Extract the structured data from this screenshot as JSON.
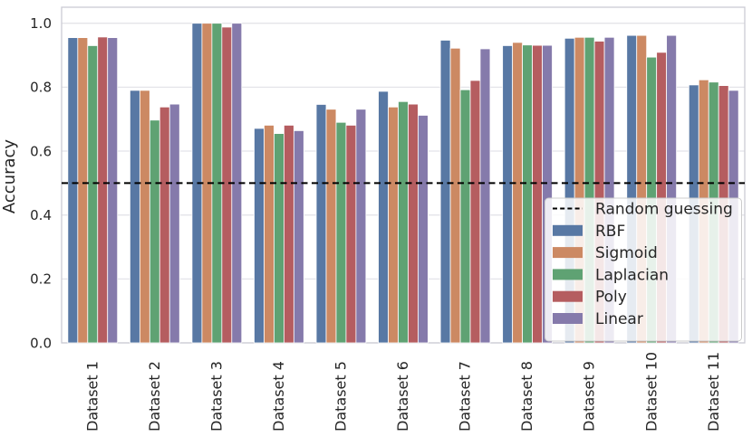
{
  "chart_data": {
    "type": "bar",
    "title": "",
    "xlabel": "",
    "ylabel": "Accuracy",
    "ylim": [
      0.0,
      1.0
    ],
    "yticks": [
      "0.0",
      "0.2",
      "0.4",
      "0.6",
      "0.8",
      "1.0"
    ],
    "grid": true,
    "legend_position": "lower right",
    "categories": [
      "Dataset 1",
      "Dataset 2",
      "Dataset 3",
      "Dataset 4",
      "Dataset 5",
      "Dataset 6",
      "Dataset 7",
      "Dataset 8",
      "Dataset 9",
      "Dataset 10",
      "Dataset 11"
    ],
    "series": [
      {
        "name": "RBF",
        "color": "#5878A4",
        "values": [
          0.955,
          0.79,
          1.0,
          0.671,
          0.746,
          0.787,
          0.947,
          0.93,
          0.953,
          0.962,
          0.807
        ]
      },
      {
        "name": "Sigmoid",
        "color": "#CC8963",
        "values": [
          0.955,
          0.79,
          1.0,
          0.681,
          0.731,
          0.738,
          0.922,
          0.94,
          0.956,
          0.962,
          0.823
        ]
      },
      {
        "name": "Laplacian",
        "color": "#5FA273",
        "values": [
          0.93,
          0.697,
          1.0,
          0.655,
          0.69,
          0.755,
          0.792,
          0.932,
          0.956,
          0.894,
          0.816
        ]
      },
      {
        "name": "Poly",
        "color": "#B55D60",
        "values": [
          0.957,
          0.738,
          0.988,
          0.681,
          0.681,
          0.747,
          0.821,
          0.931,
          0.944,
          0.909,
          0.805
        ]
      },
      {
        "name": "Linear",
        "color": "#857AAB",
        "values": [
          0.955,
          0.747,
          1.0,
          0.664,
          0.731,
          0.712,
          0.92,
          0.931,
          0.956,
          0.962,
          0.79
        ]
      }
    ],
    "reference_line": {
      "label": "Random guessing",
      "value": 0.5,
      "style": "dashed",
      "color": "#000000"
    },
    "legend_entries": [
      "Random guessing",
      "RBF",
      "Sigmoid",
      "Laplacian",
      "Poly",
      "Linear"
    ]
  },
  "colors": {
    "background": "#ffffff",
    "gridline": "#e4e4e9",
    "spine": "#cbcbd4",
    "text": "#262626",
    "legend_border": "#cccccc",
    "legend_background": "#ffffff",
    "reference_line": "#000000"
  }
}
